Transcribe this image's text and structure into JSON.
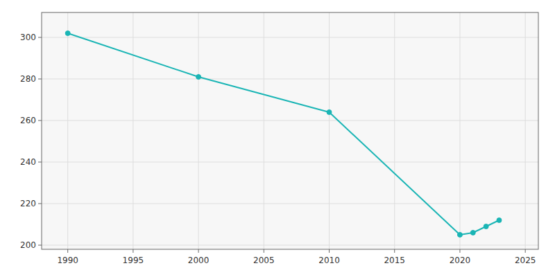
{
  "chart_data": {
    "type": "line",
    "x": [
      1990,
      2000,
      2010,
      2020,
      2021,
      2022,
      2023
    ],
    "values": [
      302,
      281,
      264,
      205,
      206,
      209,
      212
    ],
    "color": "#1ab5b5",
    "marker": "circle",
    "xlim": [
      1988,
      2026
    ],
    "ylim": [
      198,
      312
    ],
    "xticks": [
      1990,
      1995,
      2000,
      2005,
      2010,
      2015,
      2020,
      2025
    ],
    "yticks": [
      200,
      220,
      240,
      260,
      280,
      300
    ],
    "grid": true
  }
}
